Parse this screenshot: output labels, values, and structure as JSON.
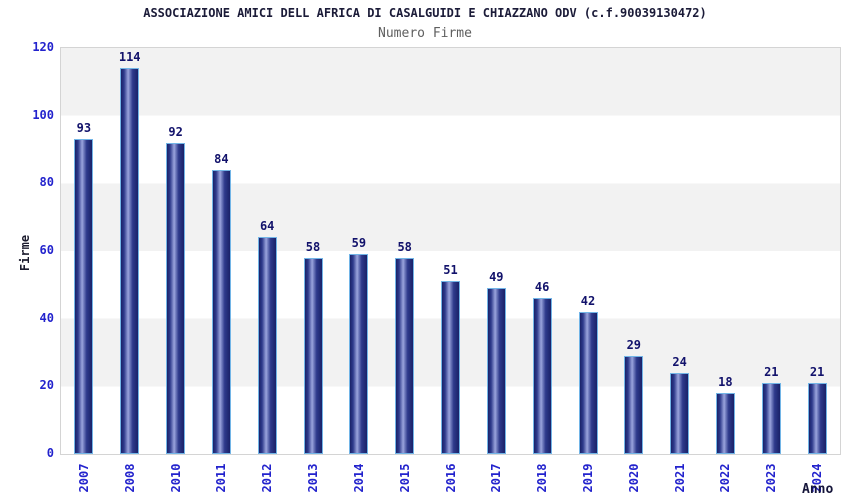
{
  "chart_data": {
    "type": "bar",
    "title": "ASSOCIAZIONE AMICI DELL AFRICA DI CASALGUIDI E CHIAZZANO ODV (c.f.90039130472)",
    "subtitle": "Numero Firme",
    "categories": [
      "2007",
      "2008",
      "2010",
      "2011",
      "2012",
      "2013",
      "2014",
      "2015",
      "2016",
      "2017",
      "2018",
      "2019",
      "2020",
      "2021",
      "2022",
      "2023",
      "2024"
    ],
    "values": [
      93,
      114,
      92,
      84,
      64,
      58,
      59,
      58,
      51,
      49,
      46,
      42,
      29,
      24,
      18,
      21,
      21
    ],
    "xlabel": "Anno",
    "ylabel": "Firme",
    "ylim": [
      0,
      120
    ],
    "y_ticks": [
      0,
      20,
      40,
      60,
      80,
      100,
      120
    ],
    "legend": "none",
    "grid": "alternating-horizontal-bands",
    "colors": {
      "bar_edge": "#1a2268",
      "bar_mid": "#2e3a8c",
      "bar_highlight": "#9aa4dc",
      "bar_border": "#72b5e7",
      "axis_tick_label": "#2323cd",
      "value_label": "#12126b",
      "band_gray": "#f2f2f2",
      "band_white": "#ffffff",
      "plot_border": "#d4d4d4",
      "title": "#1b1b38",
      "subtitle": "#5f5f5f"
    }
  }
}
